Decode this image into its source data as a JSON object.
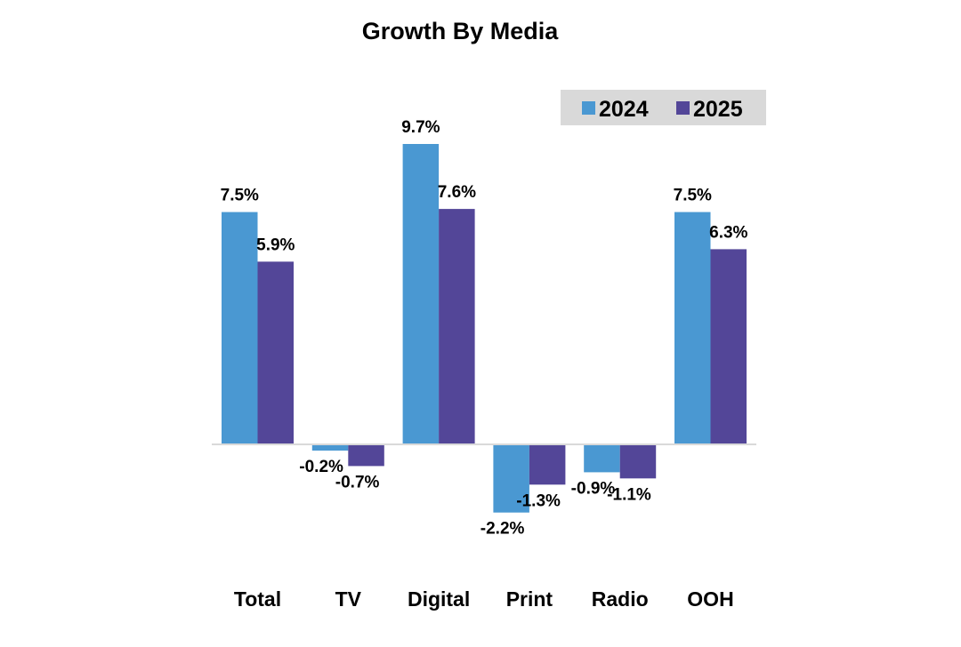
{
  "chart_data": {
    "type": "bar",
    "title": "Growth By Media",
    "xlabel": "",
    "ylabel": "",
    "categories": [
      "Total",
      "TV",
      "Digital",
      "Print",
      "Radio",
      "OOH"
    ],
    "series": [
      {
        "name": "2024",
        "color": "#4A98D2",
        "values": [
          7.5,
          -0.2,
          9.7,
          -2.2,
          -0.9,
          7.5
        ],
        "labels": [
          "7.5%",
          "-0.2%",
          "9.7%",
          "-2.2%",
          "-0.9%",
          "7.5%"
        ]
      },
      {
        "name": "2025",
        "color": "#534698",
        "values": [
          5.9,
          -0.7,
          7.6,
          -1.3,
          -1.1,
          6.3
        ],
        "labels": [
          "5.9%",
          "-0.7%",
          "7.6%",
          "-1.3%",
          "-1.1%",
          "6.3%"
        ]
      }
    ],
    "ylim": [
      -2.8,
      11.5
    ],
    "grid": false,
    "legend": {
      "position": "top-right",
      "background": "#D9D9D9"
    },
    "axis_color": "#D9D9D9"
  }
}
